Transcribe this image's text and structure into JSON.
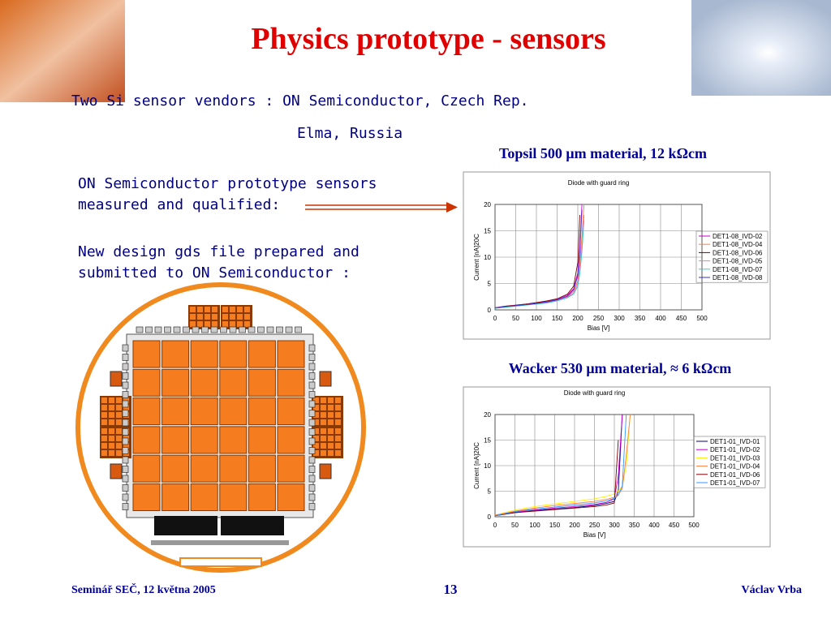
{
  "title": "Physics prototype - sensors",
  "vendors": {
    "line1": "Two Si sensor vendors : ON Semiconductor, Czech Rep.",
    "line2": "Elma, Russia"
  },
  "text1": [
    "ON Semiconductor prototype sensors",
    "measured and qualified:"
  ],
  "text2": [
    "New design gds file prepared and",
    "submitted to ON Semiconductor :"
  ],
  "captions": [
    "Topsil 500 μm material, 12 kΩcm",
    "Wacker 530 μm material, ≈ 6 kΩcm"
  ],
  "footer": {
    "left": "Seminář SEČ, 12 května 2005",
    "page": "13",
    "right": "Václav Vrba"
  },
  "charts": [
    {
      "type": "line",
      "title": "Diode with guard ring",
      "x_label": "Bias [V]",
      "y_label": "Current [nA]20C",
      "x": [
        0,
        25,
        50,
        75,
        100,
        125,
        150,
        175,
        190,
        200,
        205,
        210,
        215
      ],
      "xlim": [
        0,
        500
      ],
      "xticks": [
        0,
        50,
        100,
        150,
        200,
        250,
        300,
        350,
        400,
        450,
        500
      ],
      "ylim": [
        0,
        20
      ],
      "yticks": [
        0,
        5,
        10,
        15,
        20
      ],
      "grid": true,
      "series": [
        {
          "name": "DET1-08_IVD-02",
          "color": "#cc00cc",
          "values": [
            0.4,
            0.7,
            0.9,
            1.1,
            1.3,
            1.6,
            2.0,
            2.8,
            4.0,
            7.0,
            12,
            20,
            null
          ]
        },
        {
          "name": "DET1-08_IVD-04",
          "color": "#ff8040",
          "values": [
            0.3,
            0.6,
            0.8,
            1.0,
            1.2,
            1.5,
            1.9,
            2.5,
            3.5,
            5.5,
            9,
            14,
            20
          ]
        },
        {
          "name": "DET1-08_IVD-06",
          "color": "#800000",
          "values": [
            0.4,
            0.7,
            0.9,
            1.1,
            1.4,
            1.7,
            2.1,
            3.0,
            4.5,
            9,
            18,
            null,
            null
          ]
        },
        {
          "name": "DET1-08_IVD-05",
          "color": "#ff66cc",
          "values": [
            0.3,
            0.6,
            0.8,
            1.0,
            1.2,
            1.4,
            1.8,
            2.4,
            3.2,
            5.0,
            8,
            12,
            18
          ]
        },
        {
          "name": "DET1-08_IVD-07",
          "color": "#33cccc",
          "values": [
            0.3,
            0.5,
            0.7,
            0.9,
            1.1,
            1.3,
            1.7,
            2.3,
            3.0,
            4.5,
            7,
            11,
            17
          ]
        },
        {
          "name": "DET1-08_IVD-08",
          "color": "#3333cc",
          "values": [
            0.4,
            0.6,
            0.8,
            1.0,
            1.2,
            1.5,
            1.9,
            2.6,
            3.8,
            6.5,
            11,
            19,
            null
          ]
        }
      ]
    },
    {
      "type": "line",
      "title": "Diode with guard ring",
      "x_label": "Bias [V]",
      "y_label": "Current [nA]20C",
      "x": [
        0,
        50,
        100,
        150,
        200,
        250,
        280,
        300,
        310,
        320,
        330,
        340
      ],
      "xlim": [
        0,
        500
      ],
      "xticks": [
        0,
        50,
        100,
        150,
        200,
        250,
        300,
        350,
        400,
        450,
        500
      ],
      "ylim": [
        0,
        20
      ],
      "yticks": [
        0,
        5,
        10,
        15,
        20
      ],
      "grid": true,
      "series": [
        {
          "name": "DET1-01_IVD-01",
          "color": "#000080",
          "values": [
            0.2,
            0.8,
            1.2,
            1.5,
            1.8,
            2.2,
            2.6,
            3.0,
            5.0,
            20,
            null,
            null
          ]
        },
        {
          "name": "DET1-01_IVD-02",
          "color": "#cc00cc",
          "values": [
            0.2,
            0.9,
            1.3,
            1.7,
            2.0,
            2.4,
            2.8,
            3.5,
            8,
            20,
            null,
            null
          ]
        },
        {
          "name": "DET1-01_IVD-03",
          "color": "#ffee00",
          "values": [
            0.3,
            1.3,
            2.0,
            2.5,
            3.0,
            3.5,
            4.0,
            4.5,
            5.0,
            6.0,
            10,
            20
          ]
        },
        {
          "name": "DET1-01_IVD-04",
          "color": "#ff8040",
          "values": [
            0.3,
            1.1,
            1.7,
            2.2,
            2.6,
            3.0,
            3.4,
            3.8,
            4.3,
            5.5,
            12,
            20
          ]
        },
        {
          "name": "DET1-01_IVD-06",
          "color": "#800000",
          "values": [
            0.2,
            0.8,
            1.1,
            1.4,
            1.7,
            2.0,
            2.3,
            2.7,
            15,
            null,
            null,
            null
          ]
        },
        {
          "name": "DET1-01_IVD-07",
          "color": "#3399ff",
          "values": [
            0.2,
            1.0,
            1.5,
            1.9,
            2.3,
            2.7,
            3.1,
            3.6,
            4.2,
            6.0,
            20,
            null
          ]
        }
      ]
    }
  ]
}
